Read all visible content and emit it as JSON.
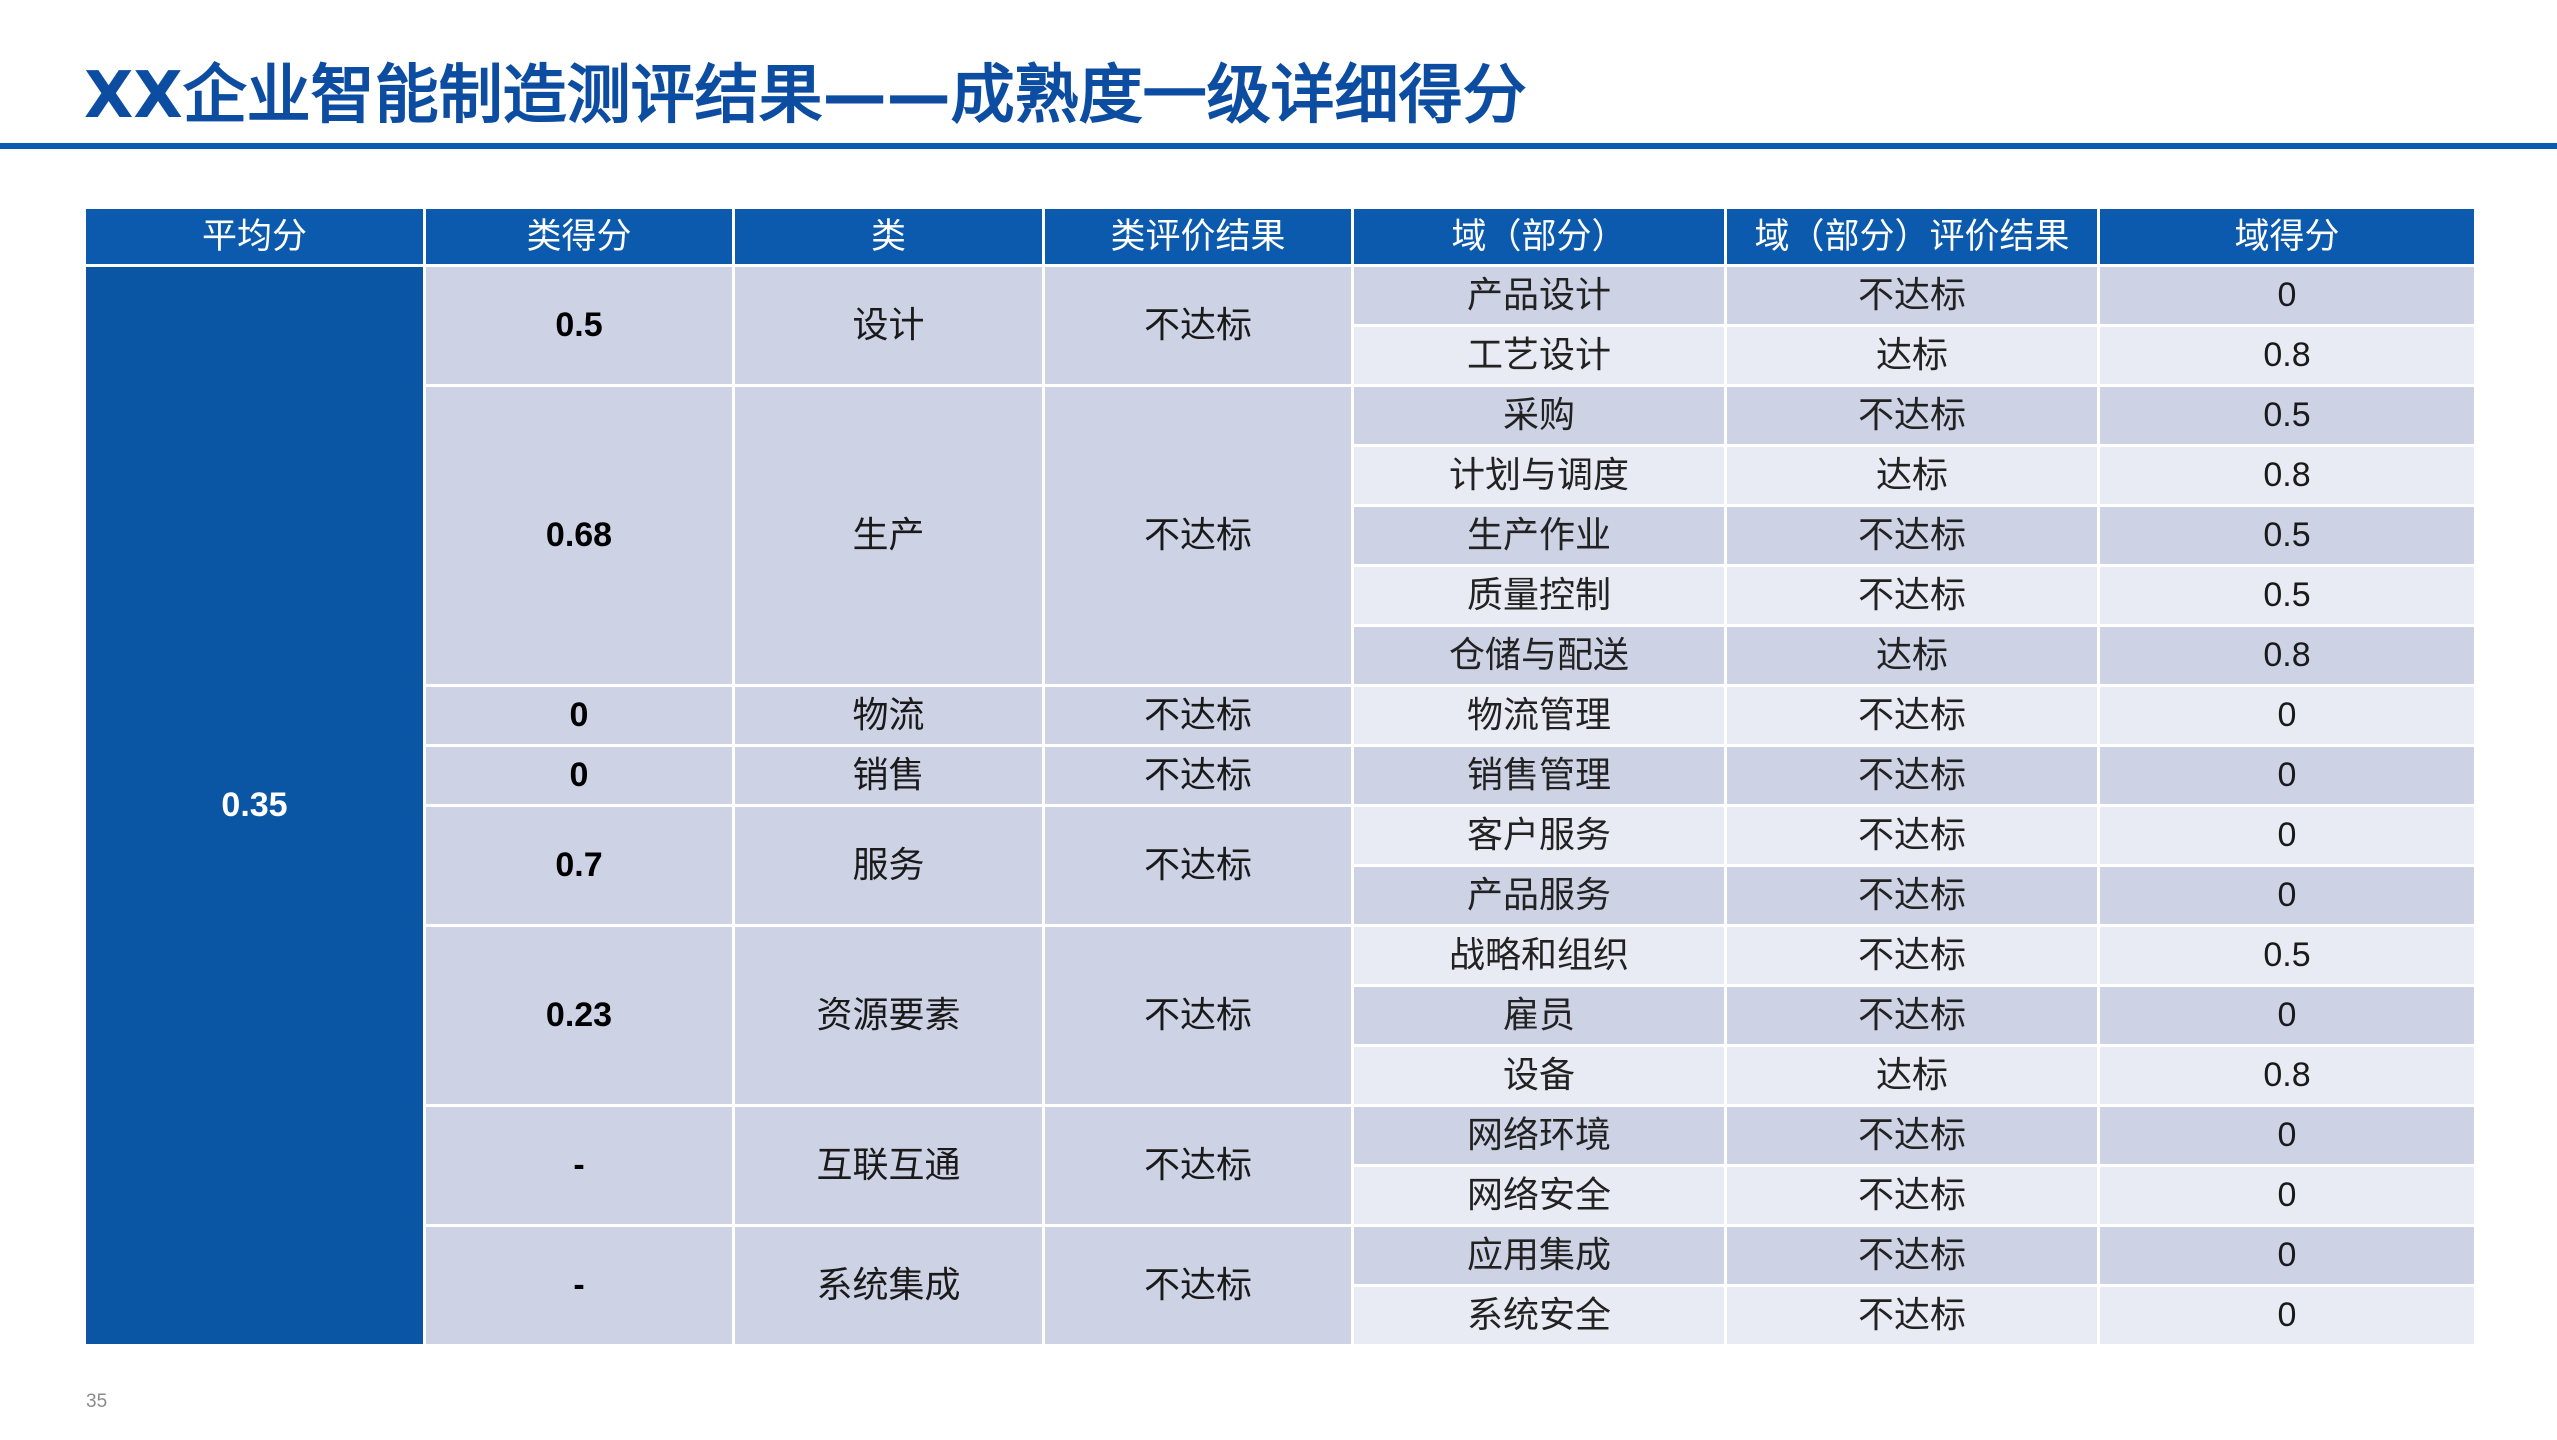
{
  "slide": {
    "title": "XX企业智能制造测评结果——成熟度一级详细得分",
    "page_number": "35"
  },
  "colors": {
    "title": "#0C4DA2",
    "accent_rule": "#0B5CAD",
    "header_bg": "#0C5AAD",
    "average_bg": "#0A56A5",
    "category_bg": "#CDD2E4",
    "row_dark": "#CDD2E4",
    "row_light": "#E8EBF3",
    "header_text": "#FFFFFF",
    "body_text": "#1A1A1A"
  },
  "table": {
    "headers": [
      "平均分",
      "类得分",
      "类",
      "类评价结果",
      "域（部分）",
      "域（部分）评价结果",
      "域得分"
    ],
    "average_score": "0.35",
    "categories": [
      {
        "score": "0.5",
        "name": "设计",
        "result": "不达标",
        "domains": [
          {
            "name": "产品设计",
            "result": "不达标",
            "score": "0"
          },
          {
            "name": "工艺设计",
            "result": "达标",
            "score": "0.8"
          }
        ]
      },
      {
        "score": "0.68",
        "name": "生产",
        "result": "不达标",
        "domains": [
          {
            "name": "采购",
            "result": "不达标",
            "score": "0.5"
          },
          {
            "name": "计划与调度",
            "result": "达标",
            "score": "0.8"
          },
          {
            "name": "生产作业",
            "result": "不达标",
            "score": "0.5"
          },
          {
            "name": "质量控制",
            "result": "不达标",
            "score": "0.5"
          },
          {
            "name": "仓储与配送",
            "result": "达标",
            "score": "0.8"
          }
        ]
      },
      {
        "score": "0",
        "name": "物流",
        "result": "不达标",
        "domains": [
          {
            "name": "物流管理",
            "result": "不达标",
            "score": "0"
          }
        ]
      },
      {
        "score": "0",
        "name": "销售",
        "result": "不达标",
        "domains": [
          {
            "name": "销售管理",
            "result": "不达标",
            "score": "0"
          }
        ]
      },
      {
        "score": "0.7",
        "name": "服务",
        "result": "不达标",
        "domains": [
          {
            "name": "客户服务",
            "result": "不达标",
            "score": "0"
          },
          {
            "name": "产品服务",
            "result": "不达标",
            "score": "0"
          }
        ]
      },
      {
        "score": "0.23",
        "name": "资源要素",
        "result": "不达标",
        "domains": [
          {
            "name": "战略和组织",
            "result": "不达标",
            "score": "0.5"
          },
          {
            "name": "雇员",
            "result": "不达标",
            "score": "0"
          },
          {
            "name": "设备",
            "result": "达标",
            "score": "0.8"
          }
        ]
      },
      {
        "score": "-",
        "name": "互联互通",
        "result": "不达标",
        "domains": [
          {
            "name": "网络环境",
            "result": "不达标",
            "score": "0"
          },
          {
            "name": "网络安全",
            "result": "不达标",
            "score": "0"
          }
        ]
      },
      {
        "score": "-",
        "name": "系统集成",
        "result": "不达标",
        "domains": [
          {
            "name": "应用集成",
            "result": "不达标",
            "score": "0"
          },
          {
            "name": "系统安全",
            "result": "不达标",
            "score": "0"
          }
        ]
      }
    ]
  }
}
